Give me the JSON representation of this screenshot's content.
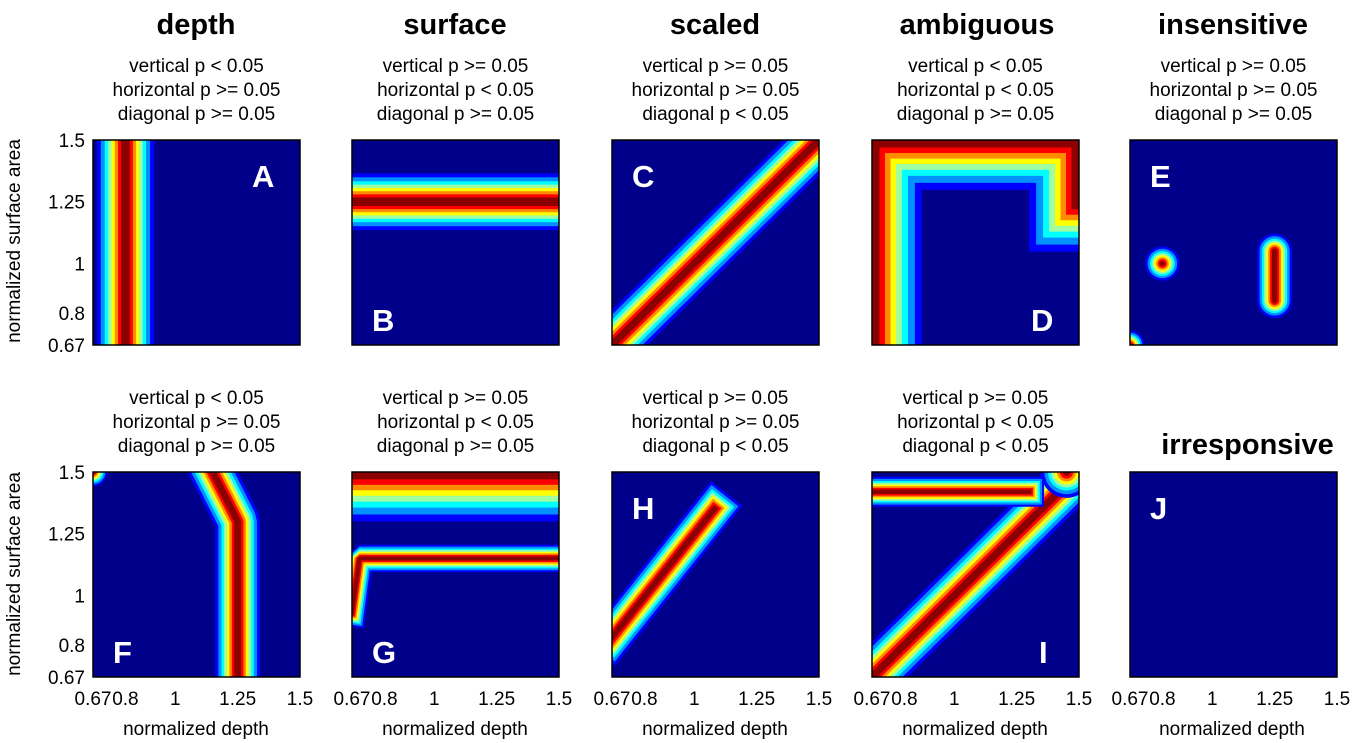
{
  "colors": {
    "background": "#00008b",
    "colormap": [
      "#00008b",
      "#0000ff",
      "#0090ff",
      "#00ffff",
      "#a0ffa0",
      "#ffff00",
      "#ff8c00",
      "#ff0000",
      "#8b0000"
    ]
  },
  "chart_data": {
    "type": "heatmap",
    "xlabel": "normalized depth",
    "ylabel": "normalized surface area",
    "xticks": [
      "0.67",
      "0.8",
      "1",
      "1.25",
      "1.5"
    ],
    "yticks": [
      "1.5",
      "1.25",
      "1",
      "0.8",
      "0.67"
    ],
    "xlim": [
      0.67,
      1.5
    ],
    "ylim": [
      0.67,
      1.5
    ],
    "column_titles": [
      "depth",
      "surface",
      "scaled",
      "ambiguous",
      "insensitive"
    ],
    "panels": [
      {
        "id": "A",
        "row": 0,
        "col": 0,
        "stats": [
          "vertical p < 0.05",
          "horizontal p >= 0.05",
          "diagonal p >= 0.05"
        ],
        "features": [
          {
            "kind": "vband",
            "at": 0.8,
            "width": 0.23,
            "from": 0.67,
            "to": 1.5
          }
        ]
      },
      {
        "id": "B",
        "row": 0,
        "col": 1,
        "stats": [
          "vertical p >= 0.05",
          "horizontal p < 0.05",
          "diagonal p >= 0.05"
        ],
        "features": [
          {
            "kind": "hband",
            "at": 1.25,
            "width": 0.23,
            "from": 0.67,
            "to": 1.5
          }
        ]
      },
      {
        "id": "C",
        "row": 0,
        "col": 2,
        "stats": [
          "vertical p >= 0.05",
          "horizontal p >= 0.05",
          "diagonal p < 0.05"
        ],
        "features": [
          {
            "kind": "diag",
            "from": [
              0.67,
              0.67
            ],
            "to": [
              1.5,
              1.5
            ],
            "width": 0.2
          }
        ]
      },
      {
        "id": "D",
        "row": 0,
        "col": 3,
        "stats": [
          "vertical p < 0.05",
          "horizontal p < 0.05",
          "diagonal p >= 0.05"
        ],
        "features": [
          {
            "kind": "path",
            "points": [
              [
                0.67,
                0.67
              ],
              [
                0.67,
                1.5
              ],
              [
                1.5,
                1.5
              ],
              [
                1.5,
                1.25
              ]
            ],
            "width": 0.4
          }
        ]
      },
      {
        "id": "E",
        "row": 0,
        "col": 4,
        "stats": [
          "vertical p >= 0.05",
          "horizontal p >= 0.05",
          "diagonal p >= 0.05"
        ],
        "features": [
          {
            "kind": "blob",
            "points": [
              [
                0.8,
                1.0
              ]
            ],
            "width": 0.12
          },
          {
            "kind": "blob",
            "points": [
              [
                1.25,
                0.85
              ],
              [
                1.25,
                1.05
              ]
            ],
            "width": 0.14
          },
          {
            "kind": "blob",
            "points": [
              [
                0.67,
                0.67
              ]
            ],
            "width": 0.1
          }
        ]
      },
      {
        "id": "F",
        "row": 1,
        "col": 0,
        "stats": [
          "vertical p < 0.05",
          "horizontal p >= 0.05",
          "diagonal p >= 0.05"
        ],
        "features": [
          {
            "kind": "blob",
            "points": [
              [
                0.67,
                1.5
              ]
            ],
            "width": 0.1
          },
          {
            "kind": "path",
            "points": [
              [
                1.25,
                0.67
              ],
              [
                1.25,
                1.3
              ],
              [
                1.15,
                1.5
              ]
            ],
            "width": 0.18
          }
        ]
      },
      {
        "id": "G",
        "row": 1,
        "col": 1,
        "stats": [
          "vertical p >= 0.05",
          "horizontal p < 0.05",
          "diagonal p >= 0.05"
        ],
        "features": [
          {
            "kind": "hband",
            "at": 1.5,
            "width": 0.4,
            "from": 0.67,
            "to": 1.5
          },
          {
            "kind": "path",
            "points": [
              [
                0.67,
                0.93
              ],
              [
                0.7,
                1.15
              ],
              [
                1.5,
                1.15
              ]
            ],
            "width": 0.11
          }
        ]
      },
      {
        "id": "H",
        "row": 1,
        "col": 2,
        "stats": [
          "vertical p >= 0.05",
          "horizontal p >= 0.05",
          "diagonal p < 0.05"
        ],
        "features": [
          {
            "kind": "diag",
            "from": [
              0.67,
              0.83
            ],
            "to": [
              1.08,
              1.35
            ],
            "width": 0.16
          }
        ]
      },
      {
        "id": "I",
        "row": 1,
        "col": 3,
        "stats": [
          "vertical p >= 0.05",
          "horizontal p < 0.05",
          "diagonal p < 0.05"
        ],
        "features": [
          {
            "kind": "diag",
            "from": [
              0.67,
              0.67
            ],
            "to": [
              1.5,
              1.5
            ],
            "width": 0.2
          },
          {
            "kind": "path",
            "points": [
              [
                0.67,
                1.42
              ],
              [
                1.3,
                1.42
              ]
            ],
            "width": 0.12
          },
          {
            "kind": "blob",
            "points": [
              [
                1.45,
                1.5
              ]
            ],
            "width": 0.18
          }
        ]
      },
      {
        "id": "J",
        "row": 1,
        "col": 4,
        "title": "irresponsive",
        "stats": [],
        "features": []
      }
    ]
  }
}
